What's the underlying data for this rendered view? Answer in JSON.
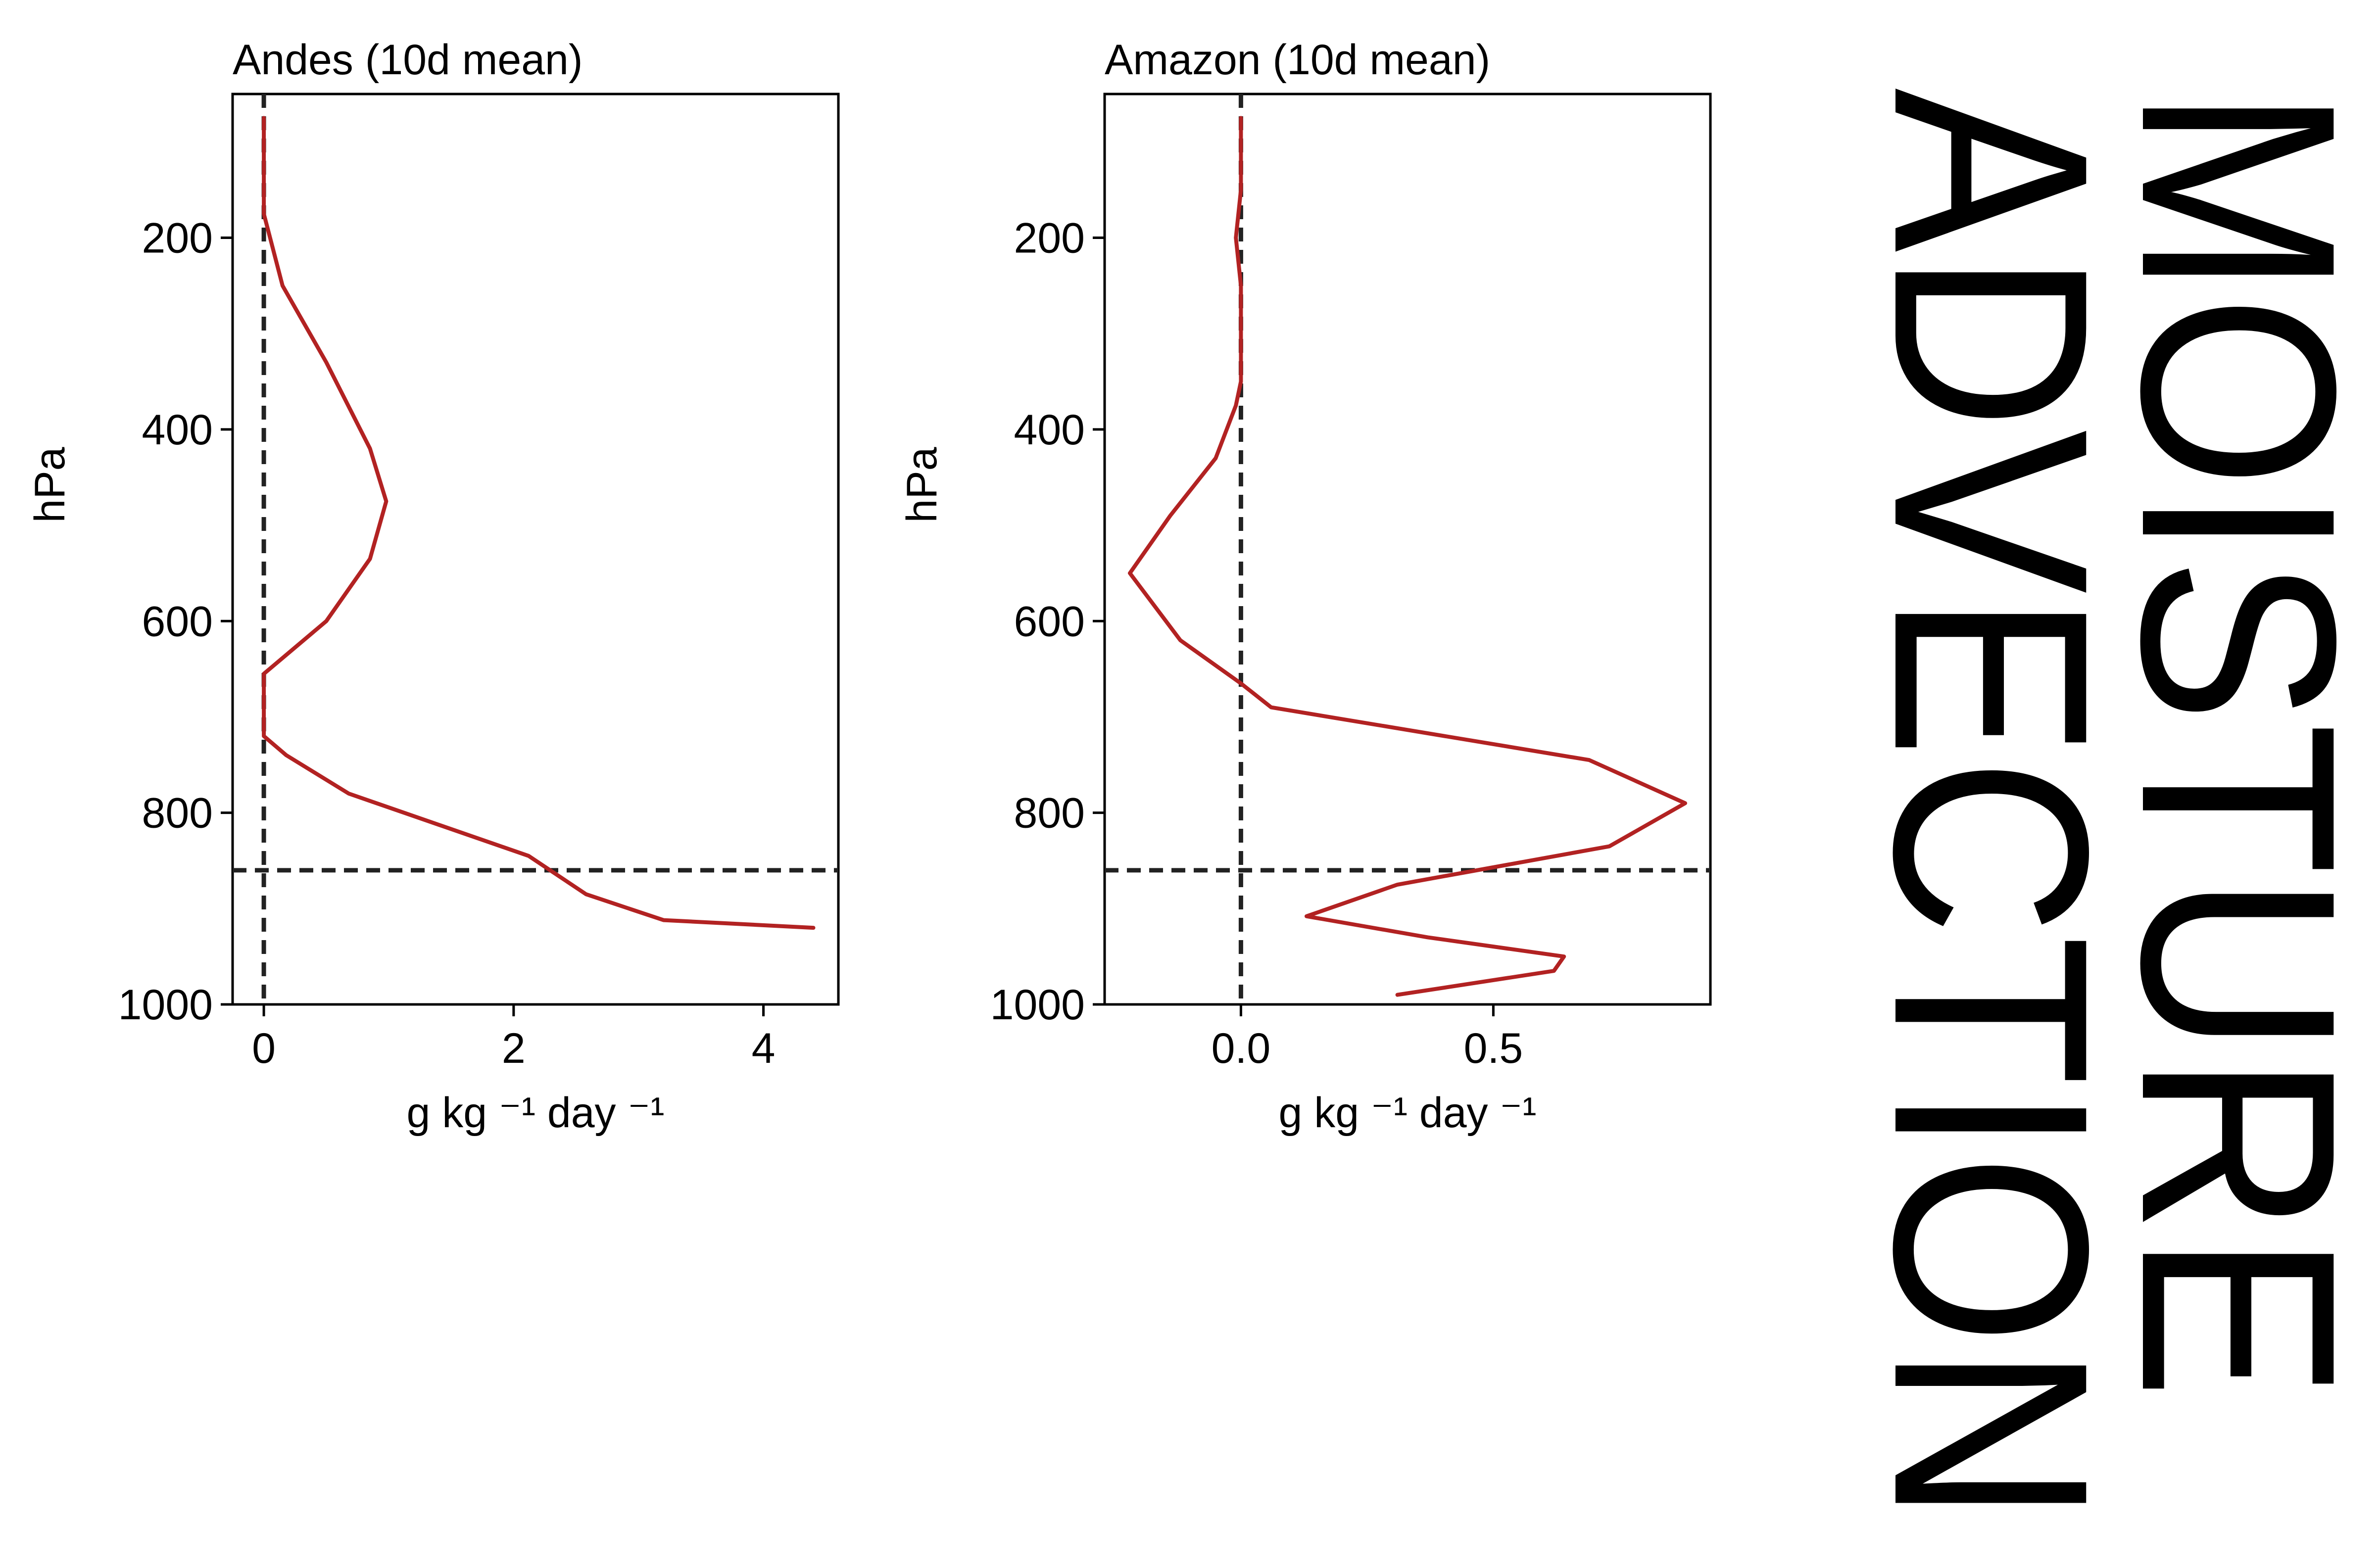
{
  "chart_data": [
    {
      "type": "line",
      "title": "Andes (10d mean)",
      "xlabel": "g kg ⁻¹ day ⁻¹",
      "ylabel": "hPa",
      "xlim": [
        -0.25,
        4.6
      ],
      "ylim": [
        1000,
        50
      ],
      "y_inverted": true,
      "xticks": [
        0,
        2,
        4
      ],
      "xtick_labels": [
        "0",
        "2",
        "4"
      ],
      "yticks": [
        200,
        400,
        600,
        800,
        1000
      ],
      "ytick_labels": [
        "200",
        "400",
        "600",
        "800",
        "1000"
      ],
      "reference_lines": [
        {
          "orientation": "vertical",
          "value": 0,
          "style": "dashed"
        },
        {
          "orientation": "horizontal",
          "value": 860,
          "style": "dashed"
        }
      ],
      "series": [
        {
          "color": "#b22222",
          "x": [
            0.0,
            0.0,
            0.0,
            0.05,
            0.15,
            0.5,
            0.85,
            0.98,
            0.85,
            0.5,
            0.0,
            0.0,
            0.0,
            0.18,
            0.68,
            2.12,
            2.58,
            3.2,
            4.4
          ],
          "y": [
            75,
            150,
            175,
            200,
            250,
            330,
            420,
            475,
            535,
            600,
            655,
            700,
            720,
            740,
            780,
            845,
            885,
            912,
            920
          ]
        }
      ]
    },
    {
      "type": "line",
      "title": "Amazon (10d mean)",
      "xlabel": "g kg ⁻¹ day ⁻¹",
      "ylabel": "hPa",
      "xlim": [
        -0.27,
        0.93
      ],
      "ylim": [
        1000,
        50
      ],
      "y_inverted": true,
      "xticks": [
        0.0,
        0.5
      ],
      "xtick_labels": [
        "0.0",
        "0.5"
      ],
      "yticks": [
        200,
        400,
        600,
        800,
        1000
      ],
      "ytick_labels": [
        "200",
        "400",
        "600",
        "800",
        "1000"
      ],
      "reference_lines": [
        {
          "orientation": "vertical",
          "value": 0,
          "style": "dashed"
        },
        {
          "orientation": "horizontal",
          "value": 860,
          "style": "dashed"
        }
      ],
      "series": [
        {
          "color": "#b22222",
          "x": [
            0.0,
            0.0,
            -0.01,
            0.0,
            0.0,
            0.0,
            -0.01,
            -0.05,
            -0.14,
            -0.22,
            -0.12,
            0.0,
            0.06,
            0.69,
            0.88,
            0.73,
            0.31,
            0.13,
            0.37,
            0.64,
            0.62,
            0.31
          ],
          "y": [
            75,
            150,
            200,
            250,
            300,
            350,
            375,
            430,
            490,
            550,
            620,
            665,
            690,
            745,
            790,
            835,
            875,
            908,
            930,
            950,
            965,
            990
          ]
        }
      ]
    }
  ],
  "side_title": {
    "line1": "MOISTURE",
    "line2": "ADVECTION"
  }
}
